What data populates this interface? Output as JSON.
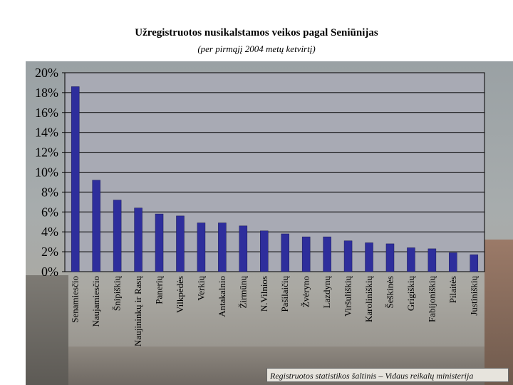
{
  "chart_data": {
    "type": "bar",
    "title": "Užregistruotos nusikalstamos veikos pagal Seniūnijas",
    "subtitle": "(per pirmąjį 2004 metų ketvirtį)",
    "categories": [
      "Senamiesčio",
      "Naujamiesčio",
      "Šnipiškių",
      "Naujininkų ir Rasų",
      "Panerių",
      "Vilkpėdės",
      "Verkių",
      "Antakalnio",
      "Žirmūnų",
      "N.Vilnios",
      "Pašilaičių",
      "Žvėryno",
      "Lazdynų",
      "Viršuliškių",
      "Karoliniškių",
      "Šeškinės",
      "Grigiškių",
      "Fabijoniškių",
      "Pilaitės",
      "Justiniškių"
    ],
    "values": [
      18.6,
      9.2,
      7.2,
      6.4,
      5.8,
      5.6,
      4.9,
      4.9,
      4.6,
      4.1,
      3.8,
      3.5,
      3.5,
      3.1,
      2.9,
      2.8,
      2.4,
      2.3,
      1.9,
      1.7
    ],
    "y_ticks": [
      "0%",
      "2%",
      "4%",
      "6%",
      "8%",
      "10%",
      "12%",
      "14%",
      "16%",
      "18%",
      "20%"
    ],
    "ylim": [
      0,
      20
    ],
    "grid": true,
    "bar_color": "#2e2e9c"
  },
  "source_note": "Registruotos statistikos šaltinis – Vidaus reikalų ministerija"
}
